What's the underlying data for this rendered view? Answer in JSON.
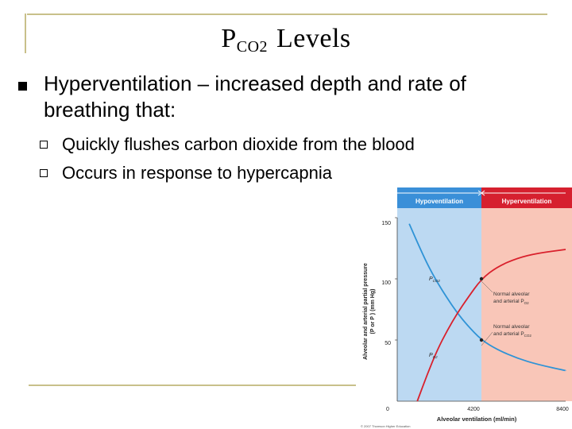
{
  "slide": {
    "title_main": "P",
    "title_sub": "CO2",
    "title_rest": " Levels",
    "bullet": "Hyperventilation – increased depth and rate of breathing that:",
    "subbullets": [
      "Quickly flushes carbon dioxide from the blood",
      "Occurs in response to hypercapnia"
    ]
  },
  "figure": {
    "header_left": "Hypoventilation",
    "header_right": "Hyperventilation",
    "y_axis_label_line1": "Alveolar and arterial partial pressure",
    "y_axis_label_line2": "(P  or P   ) (mm Hg)",
    "x_axis_label": "Alveolar ventilation (ml/min)",
    "y_ticks": [
      "150",
      "100",
      "50"
    ],
    "x_ticks": [
      "0",
      "4200",
      "8400"
    ],
    "curve_labels": {
      "pco2": "P",
      "pco2_sub": "CO2",
      "po2": "P",
      "po2_sub": "O2"
    },
    "annotation_o2": [
      "Normal alveolar",
      "and arterial P"
    ],
    "annotation_o2_sub": "O2",
    "annotation_co2": [
      "Normal alveolar",
      "and arterial P"
    ],
    "annotation_co2_sub": "CO2",
    "copyright": "© 2007 Thomson Higher Education",
    "colors": {
      "hypo_bg": "#bcd9f2",
      "hyper_bg": "#f9c6b8",
      "hypo_header": "#3a8fd8",
      "hyper_header": "#d6202f",
      "co2_curve": "#2f93d6",
      "o2_curve": "#d9202c"
    }
  },
  "chart_data": {
    "type": "line",
    "xlabel": "Alveolar ventilation (ml/min)",
    "ylabel": "Alveolar and arterial partial pressure (PO2 or PCO2) (mm Hg)",
    "xlim": [
      0,
      8400
    ],
    "ylim": [
      0,
      150
    ],
    "regions": [
      {
        "label": "Hypoventilation",
        "x_range": [
          0,
          4200
        ]
      },
      {
        "label": "Hyperventilation",
        "x_range": [
          4200,
          8400
        ]
      }
    ],
    "series": [
      {
        "name": "PCO2",
        "x": [
          600,
          1000,
          1500,
          2000,
          2500,
          3000,
          3500,
          4200,
          5000,
          6000,
          7000,
          8400
        ],
        "y": [
          145,
          130,
          112,
          97,
          84,
          72,
          62,
          50,
          42,
          35,
          30,
          25
        ]
      },
      {
        "name": "PO2",
        "x": [
          1000,
          1500,
          2000,
          2500,
          3000,
          3500,
          4200,
          5000,
          6000,
          7000,
          8400
        ],
        "y": [
          0,
          22,
          42,
          58,
          72,
          84,
          100,
          110,
          117,
          121,
          124
        ]
      }
    ],
    "annotations": [
      {
        "x": 4200,
        "y": 100,
        "text": "Normal alveolar and arterial PO2"
      },
      {
        "x": 4200,
        "y": 50,
        "text": "Normal alveolar and arterial PCO2"
      }
    ]
  }
}
